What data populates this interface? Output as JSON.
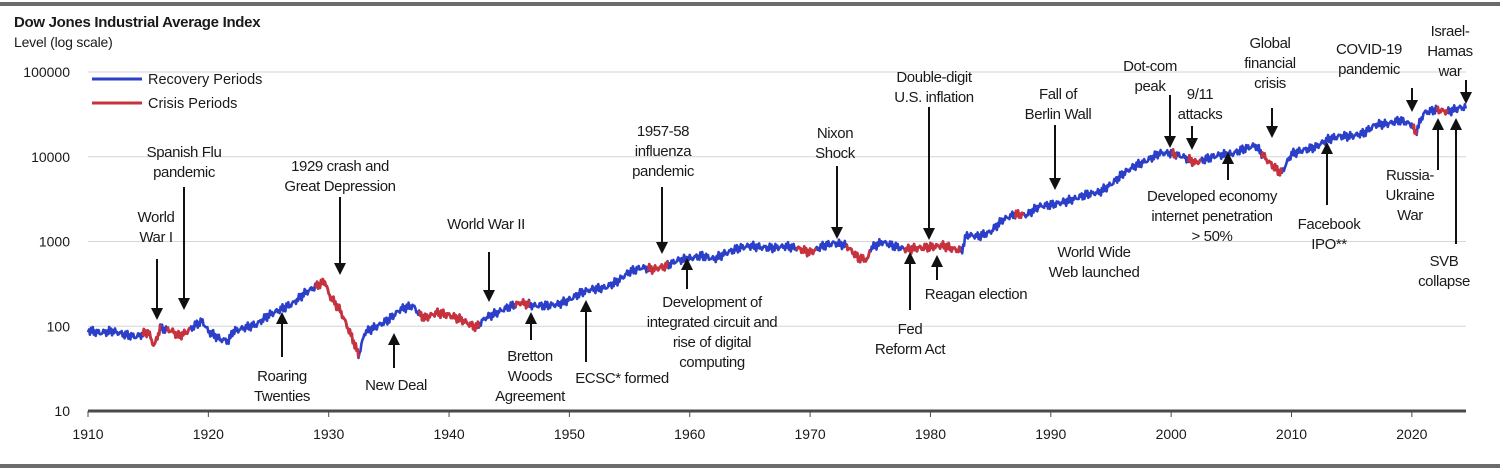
{
  "chart_data": {
    "type": "line",
    "title": "Dow Jones Industrial Average Index",
    "ylabel": "Level (log scale)",
    "y_scale": "log",
    "ylim": [
      10,
      100000
    ],
    "xlim": [
      1910,
      2024.5
    ],
    "y_ticks": [
      {
        "value": 100000,
        "label": "100000"
      },
      {
        "value": 10000,
        "label": "10000"
      },
      {
        "value": 1000,
        "label": "1000"
      },
      {
        "value": 100,
        "label": "100"
      },
      {
        "value": 10,
        "label": "10"
      }
    ],
    "x_ticks": [
      {
        "value": 1910,
        "label": "1910"
      },
      {
        "value": 1920,
        "label": "1920"
      },
      {
        "value": 1930,
        "label": "1930"
      },
      {
        "value": 1940,
        "label": "1940"
      },
      {
        "value": 1950,
        "label": "1950"
      },
      {
        "value": 1960,
        "label": "1960"
      },
      {
        "value": 1970,
        "label": "1970"
      },
      {
        "value": 1980,
        "label": "1980"
      },
      {
        "value": 1990,
        "label": "1990"
      },
      {
        "value": 2000,
        "label": "2000"
      },
      {
        "value": 2010,
        "label": "2010"
      },
      {
        "value": 2020,
        "label": "2020"
      }
    ],
    "grid": true,
    "legend_position": "top-left",
    "legend": [
      {
        "name": "Recovery Periods",
        "color": "#2c3fc8"
      },
      {
        "name": "Crisis Periods",
        "color": "#c8323c"
      }
    ],
    "series": [
      {
        "name": "Dow Jones Industrial Average Index",
        "x": [
          1910,
          1911,
          1912,
          1913,
          1914,
          1915,
          1915.5,
          1916,
          1917,
          1917.5,
          1918,
          1919,
          1919.5,
          1920,
          1921,
          1921.7,
          1922,
          1923,
          1924,
          1925,
          1926,
          1927,
          1928,
          1929,
          1929.7,
          1930,
          1931,
          1932,
          1932.5,
          1933,
          1934,
          1935,
          1936,
          1937,
          1937.5,
          1938,
          1939,
          1940,
          1941,
          1942,
          1942.3,
          1943,
          1944,
          1945,
          1946,
          1947,
          1948,
          1949,
          1950,
          1951,
          1952,
          1953,
          1954,
          1955,
          1956,
          1957,
          1958,
          1959,
          1960,
          1961,
          1962,
          1963,
          1964,
          1965,
          1966,
          1967,
          1968,
          1969,
          1970,
          1971,
          1972,
          1973,
          1974,
          1974.8,
          1975,
          1976,
          1977,
          1978,
          1979,
          1980,
          1981,
          1982,
          1982.6,
          1983,
          1984,
          1985,
          1986,
          1987,
          1988,
          1989,
          1990,
          1991,
          1992,
          1993,
          1994,
          1995,
          1996,
          1997,
          1998,
          1999,
          2000,
          2001,
          2002,
          2003,
          2004,
          2005,
          2006,
          2007,
          2008,
          2009,
          2009.2,
          2010,
          2011,
          2012,
          2013,
          2014,
          2015,
          2016,
          2017,
          2018,
          2019,
          2020,
          2020.3,
          2021,
          2022,
          2023,
          2024
        ],
        "y": [
          90,
          83,
          88,
          80,
          75,
          86,
          58,
          95,
          88,
          77,
          82,
          105,
          115,
          87,
          70,
          67,
          86,
          96,
          105,
          135,
          158,
          185,
          245,
          300,
          340,
          240,
          150,
          70,
          45,
          85,
          100,
          120,
          160,
          175,
          140,
          125,
          145,
          135,
          120,
          100,
          98,
          125,
          145,
          170,
          190,
          175,
          175,
          180,
          205,
          250,
          275,
          285,
          340,
          440,
          490,
          470,
          510,
          600,
          630,
          680,
          620,
          730,
          830,
          890,
          850,
          840,
          880,
          830,
          740,
          880,
          960,
          900,
          640,
          610,
          830,
          990,
          880,
          810,
          840,
          860,
          900,
          810,
          780,
          1200,
          1150,
          1300,
          1800,
          2100,
          2050,
          2600,
          2700,
          2900,
          3200,
          3600,
          3800,
          4700,
          6300,
          7800,
          9000,
          11000,
          11000,
          10000,
          8500,
          9500,
          10500,
          10700,
          12300,
          13600,
          9000,
          6600,
          6550,
          10800,
          12000,
          13000,
          16000,
          17500,
          17500,
          19000,
          24000,
          24500,
          27000,
          24000,
          19000,
          33000,
          36000,
          34000,
          38000
        ]
      },
      {
        "name": "Crisis Periods",
        "ranges": [
          [
            1914.5,
            1916
          ],
          [
            1916.5,
            1918.5
          ],
          [
            1928.8,
            1932.5
          ],
          [
            1937.5,
            1942.5
          ],
          [
            1945.5,
            1946.7
          ],
          [
            1956.5,
            1958.2
          ],
          [
            1968.8,
            1970.5
          ],
          [
            1973,
            1975
          ],
          [
            1977.8,
            1982.5
          ],
          [
            1987,
            1987.8
          ],
          [
            2000,
            2000.4
          ],
          [
            2001.4,
            2002.5
          ],
          [
            2007.5,
            2009.2
          ],
          [
            2020,
            2020.4
          ],
          [
            2022,
            2023
          ]
        ]
      }
    ],
    "annotations": [
      {
        "id": "ww1",
        "text": [
          "World",
          "War I"
        ],
        "year": 1915.5
      },
      {
        "id": "spanish-flu",
        "text": [
          "Spanish Flu",
          "pandemic"
        ],
        "year": 1918
      },
      {
        "id": "roaring-twenties",
        "text": [
          "Roaring",
          "Twenties"
        ],
        "year": 1926
      },
      {
        "id": "crash-1929",
        "text": [
          "1929 crash and",
          "Great Depression"
        ],
        "year": 1930.8
      },
      {
        "id": "new-deal",
        "text": [
          "New Deal"
        ],
        "year": 1935
      },
      {
        "id": "ww2",
        "text": [
          "World War II"
        ],
        "year": 1943
      },
      {
        "id": "bretton-woods",
        "text": [
          "Bretton",
          "Woods",
          "Agreement"
        ],
        "year": 1946.5
      },
      {
        "id": "ecsc",
        "text": [
          "ECSC* formed"
        ],
        "year": 1951.5
      },
      {
        "id": "influenza-1957",
        "text": [
          "1957-58",
          "influenza",
          "pandemic"
        ],
        "year": 1957.8
      },
      {
        "id": "integrated-circuit",
        "text": [
          "Development of",
          "integrated circuit and",
          "rise of digital",
          "computing"
        ],
        "year": 1959.3
      },
      {
        "id": "nixon-shock",
        "text": [
          "Nixon",
          "Shock"
        ],
        "year": 1972.3
      },
      {
        "id": "fed-reform",
        "text": [
          "Fed",
          "Reform Act"
        ],
        "year": 1977.8
      },
      {
        "id": "us-inflation",
        "text": [
          "Double-digit",
          "U.S. inflation"
        ],
        "year": 1979.8
      },
      {
        "id": "reagan",
        "text": [
          "Reagan election"
        ],
        "year": 1980.4
      },
      {
        "id": "berlin-wall",
        "text": [
          "Fall of",
          "Berlin Wall"
        ],
        "year": 1989.9
      },
      {
        "id": "www",
        "text": [
          "World Wide",
          "Web launched"
        ],
        "year": 1991
      },
      {
        "id": "dotcom",
        "text": [
          "Dot-com",
          "peak"
        ],
        "year": 2000.1
      },
      {
        "id": "nine-eleven",
        "text": [
          "9/11",
          "attacks"
        ],
        "year": 2001.7
      },
      {
        "id": "internet-50",
        "text": [
          "Developed economy",
          "internet penetration",
          "> 50%"
        ],
        "year": 2004.6
      },
      {
        "id": "gfc",
        "text": [
          "Global",
          "financial",
          "crisis"
        ],
        "year": 2008.1
      },
      {
        "id": "facebook-ipo",
        "text": [
          "Facebook",
          "IPO**"
        ],
        "year": 2012.3
      },
      {
        "id": "covid",
        "text": [
          "COVID-19",
          "pandemic"
        ],
        "year": 2019.8
      },
      {
        "id": "russia-ukraine",
        "text": [
          "Russia-",
          "Ukraine",
          "War"
        ],
        "year": 2022.1
      },
      {
        "id": "svb",
        "text": [
          "SVB",
          "collapse"
        ],
        "year": 2023.2
      },
      {
        "id": "israel-hamas",
        "text": [
          "Israel-",
          "Hamas",
          "war"
        ],
        "year": 2023.9
      }
    ]
  }
}
